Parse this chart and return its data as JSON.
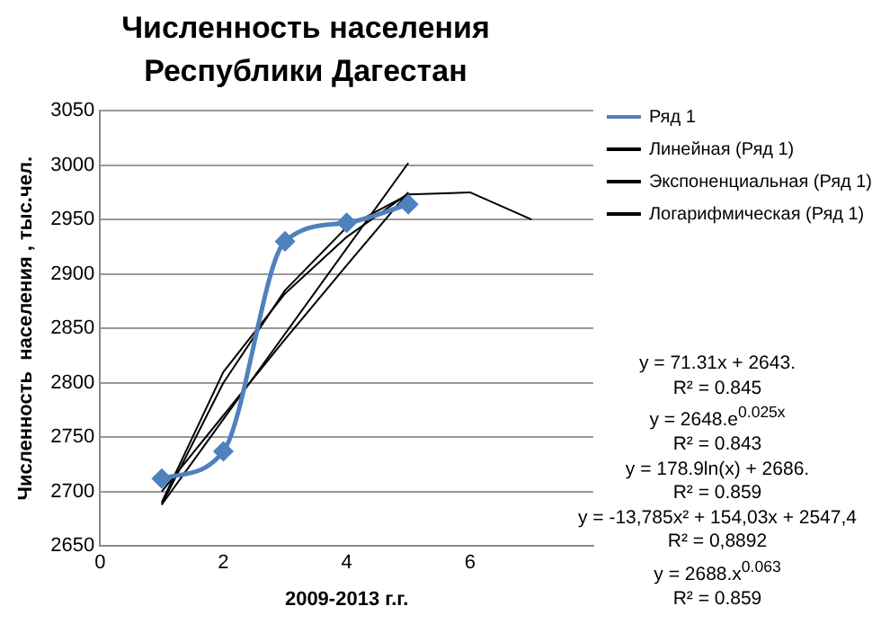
{
  "chart_data": {
    "type": "line",
    "title": "Численность населения Республики Дагестан",
    "xlabel": "2009-2013 г.г.",
    "ylabel": "Численность  населения , тыс.чел.",
    "xlim": [
      0,
      8
    ],
    "xticks": [
      0,
      2,
      4,
      6
    ],
    "ylim": [
      2650,
      3050
    ],
    "yticks": [
      2650,
      2700,
      2750,
      2800,
      2850,
      2900,
      2950,
      3000,
      3050
    ],
    "grid": "y",
    "legend": "right",
    "series": [
      {
        "name": "Ряд 1",
        "color": "#4f81bd",
        "marker": "diamond",
        "x": [
          1,
          2,
          3,
          4,
          5
        ],
        "values": [
          2712,
          2737,
          2930,
          2947,
          2964
        ]
      },
      {
        "name": "Линейная (Ряд 1)",
        "color": "#000000",
        "marker": "none",
        "x": [
          1,
          5
        ],
        "values": [
          2688,
          3002
        ]
      },
      {
        "name": "Экспоненциальная (Ряд 1)",
        "color": "#000000",
        "marker": "none",
        "x": [
          1,
          2,
          3,
          4,
          5
        ],
        "values": [
          2700,
          2770,
          2840,
          2908,
          2975
        ]
      },
      {
        "name": "Логарифмическая (Ряд 1)",
        "color": "#000000",
        "marker": "none",
        "x": [
          1,
          2,
          3,
          4,
          5
        ],
        "values": [
          2690,
          2810,
          2882,
          2934,
          2974
        ]
      },
      {
        "color": "#000000",
        "marker": "none",
        "x": [
          1,
          2,
          3,
          4,
          5,
          6,
          7
        ],
        "values": [
          2688,
          2800,
          2885,
          2943,
          2973,
          2975,
          2950
        ]
      }
    ],
    "annotations": [
      "y = 71.31x + 2643.",
      "R² = 0.845",
      "y = 2648.e$^{0.025x}$",
      "R² = 0.843",
      "y = 178.9ln(x) + 2686.",
      "R² = 0.859",
      "y = -13,785x² + 154,03x + 2547,4",
      "R² = 0,8892",
      "y = 2688.x$^{0.063}$",
      "R² = 0.859"
    ]
  }
}
